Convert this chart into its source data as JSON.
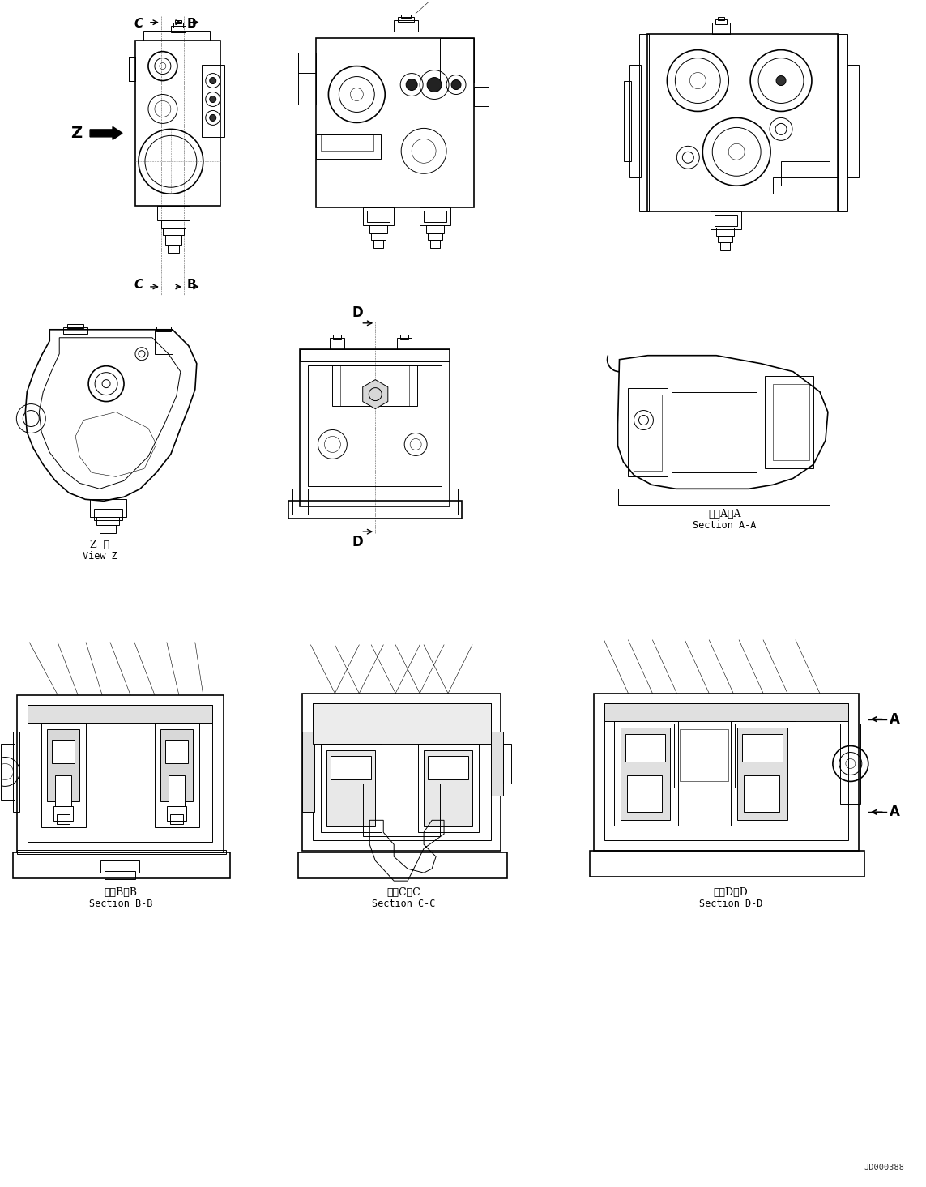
{
  "background_color": "#ffffff",
  "lc": "#000000",
  "page_width": 11.43,
  "page_height": 14.65,
  "labels": {
    "view_z_ja": "Z  視",
    "view_z_en": "View Z",
    "section_aa_ja": "断面A－A",
    "section_aa_en": "Section A-A",
    "section_bb_ja": "断面B－B",
    "section_bb_en": "Section B-B",
    "section_cc_ja": "断面C－C",
    "section_cc_en": "Section C-C",
    "section_dd_ja": "断面D－D",
    "section_dd_en": "Section D-D",
    "doc_number": "JD000388",
    "Z": "Z",
    "A": "A",
    "B": "B",
    "C": "C",
    "D": "D"
  }
}
